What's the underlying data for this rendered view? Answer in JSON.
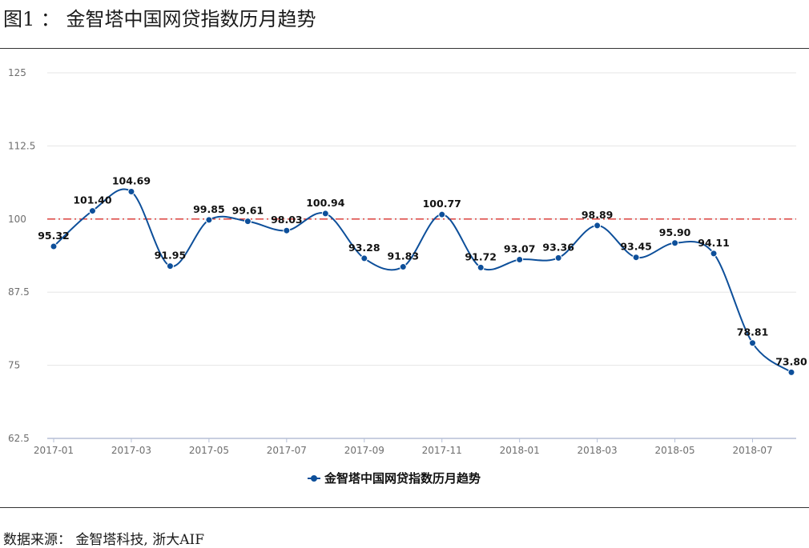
{
  "figure": {
    "title": "图1 ： 金智塔中国网贷指数历月趋势",
    "source": "数据来源：  金智塔科技, 浙大AIF"
  },
  "chart_data": {
    "type": "line",
    "x": [
      "2017-01",
      "2017-02",
      "2017-03",
      "2017-04",
      "2017-05",
      "2017-06",
      "2017-07",
      "2017-08",
      "2017-09",
      "2017-10",
      "2017-11",
      "2017-12",
      "2018-01",
      "2018-02",
      "2018-03",
      "2018-04",
      "2018-05",
      "2018-06",
      "2018-07",
      "2018-08"
    ],
    "x_tick_labels": [
      "2017-01",
      "2017-03",
      "2017-05",
      "2017-07",
      "2017-09",
      "2017-11",
      "2018-01",
      "2018-03",
      "2018-05",
      "2018-07"
    ],
    "series": [
      {
        "name": "金智塔中国网贷指数历月趋势",
        "values": [
          95.32,
          101.4,
          104.69,
          91.95,
          99.85,
          99.61,
          98.03,
          100.94,
          93.28,
          91.83,
          100.77,
          91.72,
          93.07,
          93.36,
          98.89,
          93.45,
          95.9,
          94.11,
          78.81,
          73.8
        ],
        "labels": [
          "95.32",
          "101.40",
          "104.69",
          "91.95",
          "99.85",
          "99.61",
          "98.03",
          "100.94",
          "93.28",
          "91.83",
          "100.77",
          "91.72",
          "93.07",
          "93.36",
          "98.89",
          "93.45",
          "95.90",
          "94.11",
          "78.81",
          "73.80"
        ],
        "color": "#0d4f9a"
      }
    ],
    "y_ticks": [
      62.5,
      75,
      87.5,
      100,
      112.5,
      125
    ],
    "y_tick_labels": [
      "62.5",
      "75",
      "87.5",
      "100",
      "112.5",
      "125"
    ],
    "ylim": [
      62.5,
      125
    ],
    "reference_line": {
      "value": 100,
      "color": "#d9302c",
      "style": "dash-dot"
    },
    "grid": true,
    "legend": "bottom-center",
    "title": "",
    "xlabel": "",
    "ylabel": ""
  }
}
